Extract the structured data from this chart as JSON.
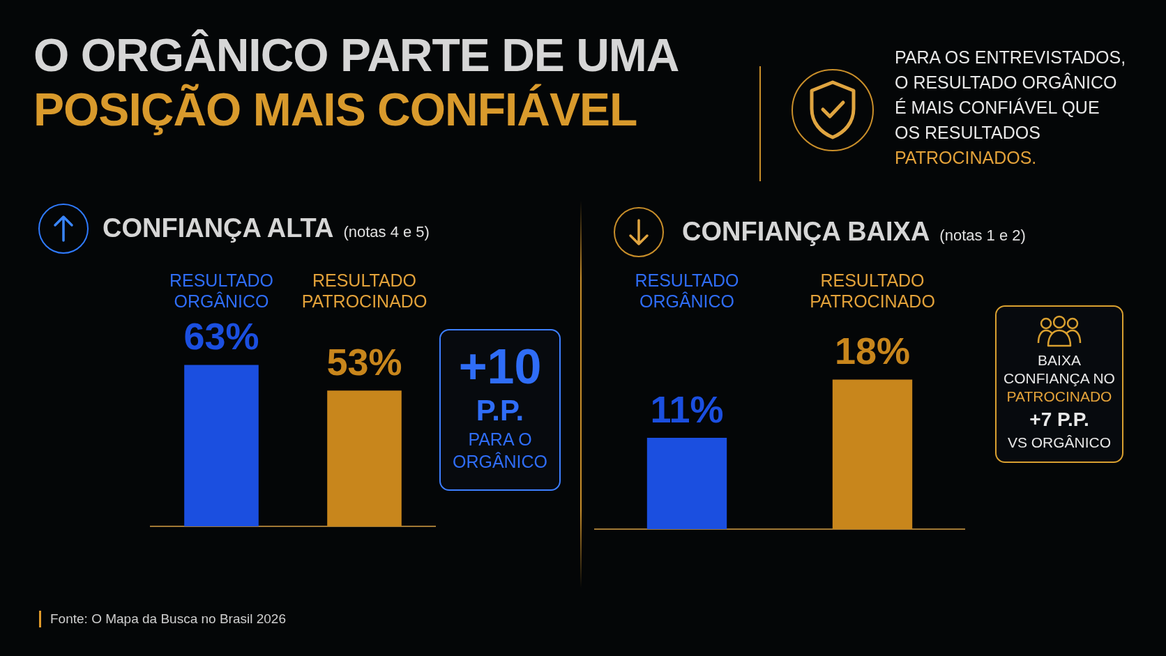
{
  "chart_data": [
    {
      "type": "other",
      "title": "O ORGÂNICO PARTE DE UMA\nPOSIÇÃO MAIS CONFIÁVEL",
      "subtitle": "PARA OS ENTREVISTADOS,\nO RESULTADO ORGÂNICO\nÉ MAIS CONFIÁVEL QUE\nOS RESULTADOS\nPATROCINADOS.",
      "annotations": [
        "Fonte: O Mapa da Busca no Brasil 2026"
      ]
    },
    {
      "type": "bar",
      "title": "CONFIANÇA ALTA",
      "subtitle": "(notas 4 e 5)",
      "categories": [
        "RESULTADO ORGÂNICO",
        "RESULTADO PATROCINADO"
      ],
      "values": [
        63,
        53
      ],
      "colors": [
        "#1b4fe0",
        "#c8861c"
      ],
      "value_labels": [
        "63%",
        "53%"
      ],
      "tick_labels": "x",
      "annotations": [
        "+10\nP.P.\nPARA O\nORGÂNICO"
      ]
    },
    {
      "type": "bar",
      "title": "CONFIANÇA BAIXA",
      "subtitle": "(notas 1 e 2)",
      "categories": [
        "RESULTADO ORGÂNICO",
        "RESULTADO PATROCINADO"
      ],
      "values": [
        11,
        18
      ],
      "colors": [
        "#1b4fe0",
        "#c8861c"
      ],
      "value_labels": [
        "11%",
        "18%"
      ],
      "tick_labels": "x",
      "annotations": [
        "BAIXA\nCONFIANÇA NO\nPATROCINADO\n+7 P.P.\nVS ORGÂNICO"
      ]
    }
  ]
}
